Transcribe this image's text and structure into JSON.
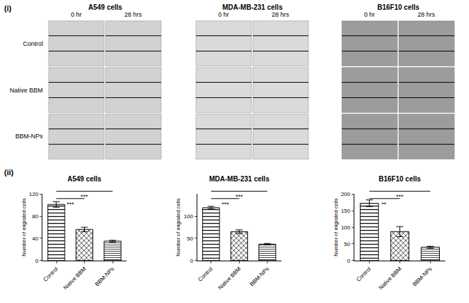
{
  "panel_i": {
    "label": "(i)",
    "rows": [
      "Control",
      "Native BBM",
      "BBM-NPs"
    ],
    "groups": [
      {
        "title": "A549 cells",
        "columns": [
          "0 hr",
          "28 hrs"
        ]
      },
      {
        "title": "MDA-MB-231 cells",
        "columns": [
          "0 hr",
          "28 hrs"
        ]
      },
      {
        "title": "B16F10 cells",
        "columns": [
          "0 hr",
          "28 hrs"
        ]
      }
    ]
  },
  "panel_ii": {
    "label": "(ii)"
  },
  "chart_data": [
    {
      "type": "bar",
      "title": "A549 cells",
      "y_label": "Number of migrated cells",
      "categories": [
        "Control",
        "Native BBM",
        "BBM-NPs"
      ],
      "values": [
        101,
        56,
        35
      ],
      "errors": [
        5,
        4,
        1.5
      ],
      "ylim": [
        0,
        120
      ],
      "yticks": [
        0,
        40,
        80,
        120
      ],
      "significance": [
        {
          "from": "Control",
          "to": "Native BBM",
          "label": "***"
        },
        {
          "from": "Control",
          "to": "BBM-NPs",
          "label": "***"
        }
      ]
    },
    {
      "type": "bar",
      "title": "MDA-MB-231 cells",
      "y_label": "Number of migrated cells",
      "categories": [
        "Control",
        "Native BBM",
        "BBM-NPs"
      ],
      "values": [
        119,
        65,
        37
      ],
      "errors": [
        3,
        4,
        1.5
      ],
      "ylim": [
        0,
        150
      ],
      "yticks": [
        0,
        50,
        100
      ],
      "significance": [
        {
          "from": "Control",
          "to": "Native BBM",
          "label": "***"
        },
        {
          "from": "Control",
          "to": "BBM-NPs",
          "label": "***"
        }
      ]
    },
    {
      "type": "bar",
      "title": "B16F10 cells",
      "y_label": "Number of migrated cells",
      "categories": [
        "Control",
        "Native BBM",
        "BBM-NPs"
      ],
      "values": [
        172,
        87,
        40
      ],
      "errors": [
        10,
        15,
        3
      ],
      "ylim": [
        0,
        200
      ],
      "yticks": [
        0,
        50,
        100,
        150,
        200
      ],
      "significance": [
        {
          "from": "Control",
          "to": "Native BBM",
          "label": "**"
        },
        {
          "from": "Control",
          "to": "BBM-NPs",
          "label": "***"
        }
      ]
    }
  ]
}
